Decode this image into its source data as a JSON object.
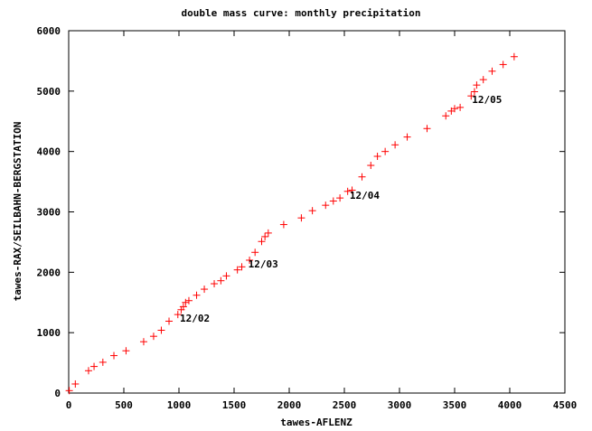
{
  "chart_data": {
    "type": "scatter",
    "title": "double mass curve: monthly precipitation",
    "xlabel": "tawes-AFLENZ",
    "ylabel": "tawes-RAX/SEILBAHN-BERGSTATION",
    "xlim": [
      0,
      4500
    ],
    "ylim": [
      0,
      6000
    ],
    "xticks": [
      "0",
      "500",
      "1000",
      "1500",
      "2000",
      "2500",
      "3000",
      "3500",
      "4000",
      "4500"
    ],
    "yticks": [
      "0",
      "1000",
      "2000",
      "3000",
      "4000",
      "5000",
      "6000"
    ],
    "grid": false,
    "legend": "none",
    "marker_color": "#ff0000",
    "points": [
      [
        5,
        40
      ],
      [
        60,
        150
      ],
      [
        180,
        370
      ],
      [
        230,
        440
      ],
      [
        310,
        510
      ],
      [
        410,
        620
      ],
      [
        520,
        700
      ],
      [
        680,
        850
      ],
      [
        770,
        940
      ],
      [
        840,
        1040
      ],
      [
        910,
        1190
      ],
      [
        990,
        1300
      ],
      [
        1020,
        1380
      ],
      [
        1040,
        1430
      ],
      [
        1060,
        1500
      ],
      [
        1090,
        1530
      ],
      [
        1160,
        1620
      ],
      [
        1230,
        1720
      ],
      [
        1320,
        1810
      ],
      [
        1380,
        1860
      ],
      [
        1430,
        1940
      ],
      [
        1530,
        2040
      ],
      [
        1570,
        2090
      ],
      [
        1640,
        2200
      ],
      [
        1690,
        2330
      ],
      [
        1750,
        2510
      ],
      [
        1780,
        2590
      ],
      [
        1810,
        2650
      ],
      [
        1950,
        2790
      ],
      [
        2110,
        2900
      ],
      [
        2210,
        3020
      ],
      [
        2330,
        3110
      ],
      [
        2400,
        3180
      ],
      [
        2460,
        3230
      ],
      [
        2530,
        3340
      ],
      [
        2570,
        3360
      ],
      [
        2660,
        3580
      ],
      [
        2740,
        3770
      ],
      [
        2800,
        3920
      ],
      [
        2870,
        4000
      ],
      [
        2960,
        4110
      ],
      [
        3070,
        4240
      ],
      [
        3250,
        4380
      ],
      [
        3420,
        4590
      ],
      [
        3470,
        4670
      ],
      [
        3500,
        4710
      ],
      [
        3550,
        4730
      ],
      [
        3650,
        4920
      ],
      [
        3680,
        4990
      ],
      [
        3700,
        5100
      ],
      [
        3760,
        5190
      ],
      [
        3840,
        5330
      ],
      [
        3940,
        5440
      ],
      [
        4040,
        5570
      ]
    ],
    "annotations": [
      {
        "text": "12/02",
        "x": 1000,
        "y": 1300
      },
      {
        "text": "12/03",
        "x": 1620,
        "y": 2200
      },
      {
        "text": "12/04",
        "x": 2540,
        "y": 3340
      },
      {
        "text": "12/05",
        "x": 3650,
        "y": 4920
      }
    ]
  }
}
